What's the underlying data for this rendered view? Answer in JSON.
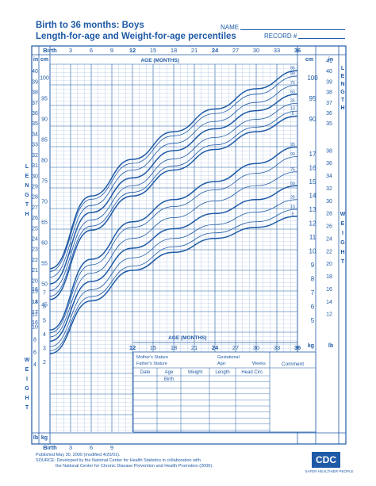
{
  "header": {
    "title_line1": "Birth to 36 months: Boys",
    "title_line2": "Length-for-age and  Weight-for-age percentiles",
    "name_label": "NAME",
    "record_label": "RECORD #"
  },
  "axes": {
    "age_label": "AGE (MONTHS)",
    "birth_label": "Birth",
    "top_ticks": [
      "Birth",
      "3",
      "6",
      "9",
      "12",
      "15",
      "18",
      "21",
      "24",
      "27",
      "30",
      "33",
      "36"
    ],
    "bottom_ticks": [
      "Birth",
      "3",
      "6",
      "9"
    ],
    "mid_ticks": [
      "12",
      "15",
      "18",
      "21",
      "24",
      "27",
      "30",
      "33",
      "36"
    ],
    "length_letters": [
      "L",
      "E",
      "N",
      "G",
      "T",
      "H"
    ],
    "weight_letters": [
      "W",
      "E",
      "I",
      "G",
      "H",
      "T"
    ],
    "unit_in": "in",
    "unit_cm": "cm",
    "unit_lb": "lb",
    "unit_kg": "kg",
    "left_in_ticks": [
      "41",
      "40",
      "39",
      "38",
      "37",
      "36",
      "35",
      "34",
      "33",
      "32",
      "31",
      "30",
      "29",
      "28",
      "27",
      "26",
      "25",
      "24",
      "23",
      "22",
      "21",
      "20",
      "19",
      "18",
      "17",
      "16",
      "15"
    ],
    "left_cm_ticks": [
      "100",
      "95",
      "90",
      "85",
      "80",
      "75",
      "70",
      "65",
      "60",
      "55",
      "50",
      "45",
      "40"
    ],
    "right_cm_ticks": [
      "100",
      "95",
      "90"
    ],
    "right_in_ticks": [
      "41",
      "40",
      "39",
      "38",
      "37",
      "36",
      "35"
    ],
    "right_kg_ticks": [
      "17",
      "16",
      "15",
      "14",
      "13",
      "12",
      "11",
      "10",
      "9",
      "8",
      "7",
      "6",
      "5"
    ],
    "right_lb_ticks": [
      "38",
      "36",
      "34",
      "32",
      "30",
      "28",
      "26",
      "24",
      "22",
      "20",
      "18",
      "16",
      "14",
      "12"
    ],
    "left_kg_ticks": [
      "7",
      "6",
      "5",
      "4",
      "3",
      "2"
    ],
    "left_lb_ticks": [
      "16",
      "14",
      "12",
      "10",
      "8",
      "6",
      "4"
    ]
  },
  "table": {
    "mothers_stature": "Mother's Stature",
    "fathers_stature": "Father's Stature",
    "gestational": "Gestational",
    "age": "Age:",
    "weeks": "Weeks",
    "comment": "Comment",
    "columns": [
      "Date",
      "Age",
      "Weight",
      "Length",
      "Head Circ."
    ],
    "birth_row": "Birth"
  },
  "footer": {
    "line1": "Published May 30, 2000 (modified 4/20/01).",
    "line2": "SOURCE: Developed by the National Center for Health Statistics in collaboration with",
    "line3": "the National Center for Chronic Disease Prevention and Health Promotion (2000).",
    "logo": "CDC",
    "tagline": "SAFER·HEALTHIER·PEOPLE"
  },
  "colors": {
    "ink": "#1f5aa6",
    "grid_minor": "#9fbbe0",
    "grid_major": "#1f5aa6"
  },
  "chart_data": [
    {
      "type": "line",
      "title": "Length-for-age percentiles",
      "xlabel": "AGE (MONTHS)",
      "ylabel": "LENGTH",
      "xlim": [
        0,
        36
      ],
      "ylim": [
        40,
        104
      ],
      "x": [
        0,
        6,
        12,
        18,
        24,
        30,
        36
      ],
      "series": [
        {
          "name": "95",
          "values": [
            53.7,
            71.3,
            80.2,
            86.9,
            92.4,
            97.3,
            101.7
          ]
        },
        {
          "name": "90",
          "values": [
            53.0,
            70.5,
            79.2,
            85.9,
            91.3,
            96.0,
            100.4
          ]
        },
        {
          "name": "75",
          "values": [
            51.6,
            69.0,
            77.6,
            84.1,
            89.4,
            94.0,
            98.2
          ]
        },
        {
          "name": "50",
          "values": [
            50.0,
            67.3,
            75.7,
            82.3,
            87.6,
            92.0,
            96.0
          ]
        },
        {
          "name": "25",
          "values": [
            48.4,
            65.5,
            73.8,
            80.3,
            85.5,
            89.9,
            93.8
          ]
        },
        {
          "name": "10",
          "values": [
            47.0,
            64.0,
            72.2,
            78.6,
            83.7,
            88.0,
            91.9
          ]
        },
        {
          "name": "5",
          "values": [
            46.2,
            63.0,
            71.3,
            77.6,
            82.6,
            86.9,
            90.7
          ]
        }
      ]
    },
    {
      "type": "line",
      "title": "Weight-for-age percentiles",
      "xlabel": "AGE (MONTHS)",
      "ylabel": "WEIGHT",
      "xlim": [
        0,
        36
      ],
      "ylim": [
        1.6,
        18
      ],
      "x": [
        0,
        6,
        12,
        18,
        24,
        30,
        36
      ],
      "series": [
        {
          "name": "95",
          "values": [
            4.3,
            9.4,
            12.1,
            13.7,
            15.0,
            16.3,
            17.5
          ]
        },
        {
          "name": "90",
          "values": [
            4.1,
            9.0,
            11.7,
            13.2,
            14.4,
            15.6,
            16.8
          ]
        },
        {
          "name": "75",
          "values": [
            3.8,
            8.4,
            10.9,
            12.4,
            13.6,
            14.7,
            15.7
          ]
        },
        {
          "name": "50",
          "values": [
            3.5,
            7.8,
            10.2,
            11.6,
            12.7,
            13.7,
            14.7
          ]
        },
        {
          "name": "25",
          "values": [
            3.1,
            7.2,
            9.5,
            10.9,
            11.9,
            12.8,
            13.7
          ]
        },
        {
          "name": "10",
          "values": [
            2.8,
            6.7,
            8.9,
            10.3,
            11.3,
            12.1,
            13.0
          ]
        },
        {
          "name": "5",
          "values": [
            2.6,
            6.4,
            8.6,
            9.9,
            10.9,
            11.7,
            12.5
          ]
        }
      ]
    }
  ]
}
